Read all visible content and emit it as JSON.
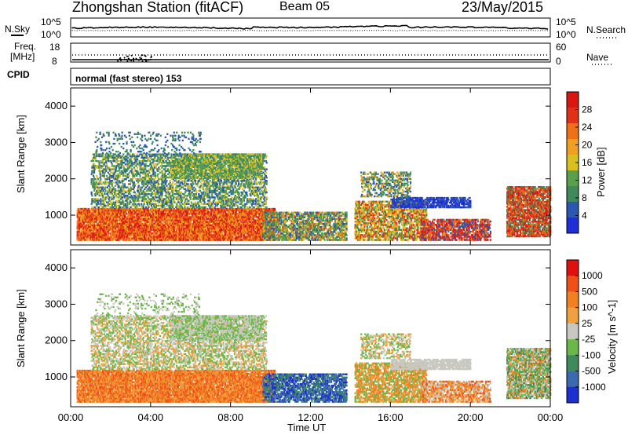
{
  "header": {
    "station": "Zhongshan Station (fitACF)",
    "beam": "Beam 05",
    "date": "23/May/2015"
  },
  "top_panels": {
    "nsky_label": "N.Sky",
    "nsky_tick_top": "10^5",
    "nsky_tick_bottom": "10^0",
    "nsearch_label": "N.Search",
    "nsearch_tick_top": "10^5",
    "nsearch_tick_bottom": "10^0",
    "freq_label_1": "Freq.",
    "freq_label_2": "[MHz]",
    "freq_tick_top": "18",
    "freq_tick_bottom": "8",
    "nave_label": "Nave",
    "nave_tick_top": "60",
    "nave_tick_bottom": "0",
    "cpid_label": "CPID",
    "cpid_value": "normal (fast stereo) 153"
  },
  "chart_data": [
    {
      "type": "heatmap",
      "name": "power",
      "ylabel": "Slant Range [km]",
      "ylim": [
        180,
        4500
      ],
      "yticks": [
        "1000",
        "2000",
        "3000",
        "4000"
      ],
      "colorbar_label": "Power [dB]",
      "colorbar_ticks": [
        "4",
        "8",
        "12",
        "16",
        "20",
        "24",
        "28"
      ],
      "colors": [
        "#1f2fd8",
        "#2b57b0",
        "#3f8a5a",
        "#5aa04a",
        "#d8c020",
        "#f0a020",
        "#f07018",
        "#e03018",
        "#d81810"
      ]
    },
    {
      "type": "heatmap",
      "name": "velocity",
      "ylabel": "Slant Range [km]",
      "ylim": [
        180,
        4500
      ],
      "yticks": [
        "1000",
        "2000",
        "3000",
        "4000"
      ],
      "colorbar_label": "Velocity [m s^-1]",
      "colorbar_ticks": [
        "1000",
        "500",
        "100",
        "25",
        "-25",
        "-100",
        "-500",
        "-1000"
      ],
      "colors": [
        "#1e2fd0",
        "#3a6ab0",
        "#3f8a5a",
        "#6ab84a",
        "#c8c8c0",
        "#f0a040",
        "#f08020",
        "#f05018",
        "#e01010"
      ]
    }
  ],
  "time_axis": {
    "ticks": [
      "00:00",
      "04:00",
      "08:00",
      "12:00",
      "16:00",
      "20:00",
      "00:00"
    ],
    "label": "Time UT"
  }
}
